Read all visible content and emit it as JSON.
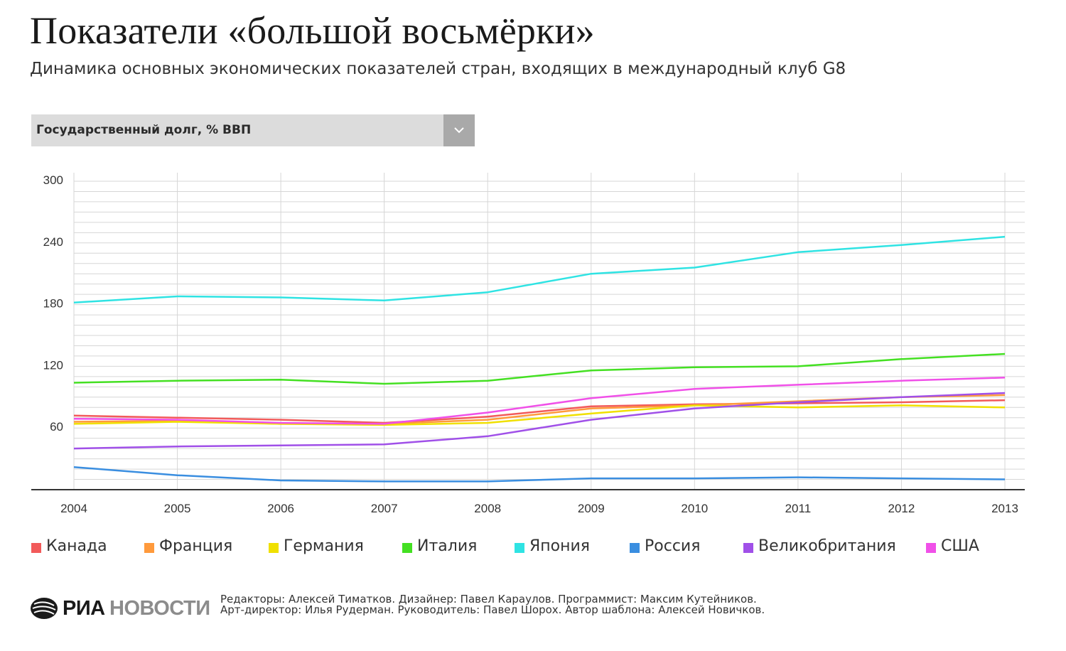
{
  "header": {
    "title": "Показатели «большой восьмёрки»",
    "subtitle": "Динамика основных экономических показателей стран, входящих в международный клуб G8"
  },
  "selector": {
    "selected": "Государственный долг, % ВВП",
    "icon": "chevron-down-icon"
  },
  "chart_data": {
    "type": "line",
    "x": [
      "2004",
      "2005",
      "2006",
      "2007",
      "2008",
      "2009",
      "2010",
      "2011",
      "2012",
      "2013"
    ],
    "ylim": [
      0,
      300
    ],
    "yticks": [
      60,
      120,
      180,
      240,
      300
    ],
    "grid": true,
    "legend_position": "bottom",
    "series": [
      {
        "name": "Канада",
        "color": "#f25a5a",
        "values": [
          72,
          70,
          68,
          65,
          71,
          81,
          83,
          84,
          85,
          87
        ]
      },
      {
        "name": "Франция",
        "color": "#ff9a3c",
        "values": [
          66,
          67,
          64,
          64,
          68,
          79,
          82,
          86,
          90,
          92
        ]
      },
      {
        "name": "Германия",
        "color": "#f0e000",
        "values": [
          64,
          66,
          64,
          63,
          65,
          74,
          82,
          80,
          82,
          80
        ]
      },
      {
        "name": "Италия",
        "color": "#44e022",
        "values": [
          104,
          106,
          107,
          103,
          106,
          116,
          119,
          120,
          127,
          132
        ]
      },
      {
        "name": "Япония",
        "color": "#2fe3e3",
        "values": [
          182,
          188,
          187,
          184,
          192,
          210,
          216,
          231,
          238,
          246
        ]
      },
      {
        "name": "Россия",
        "color": "#3a8ee0",
        "values": [
          22,
          14,
          9,
          8,
          8,
          11,
          11,
          12,
          11,
          10
        ]
      },
      {
        "name": "Великобритания",
        "color": "#a050e8",
        "values": [
          40,
          42,
          43,
          44,
          52,
          68,
          79,
          85,
          90,
          94
        ]
      },
      {
        "name": "США",
        "color": "#f050e8",
        "values": [
          69,
          68,
          65,
          64,
          75,
          89,
          98,
          102,
          106,
          109
        ]
      }
    ]
  },
  "footer": {
    "logo_left": "РИА",
    "logo_right": "НОВОСТИ",
    "credits_line1": "Редакторы: Алексей Тиматков. Дизайнер: Павел Караулов.  Программист: Максим Кутейников.",
    "credits_line2": "Арт-директор: Илья Рудерман. Руководитель: Павел Шорох. Автор шаблона: Алексей Новичков."
  }
}
